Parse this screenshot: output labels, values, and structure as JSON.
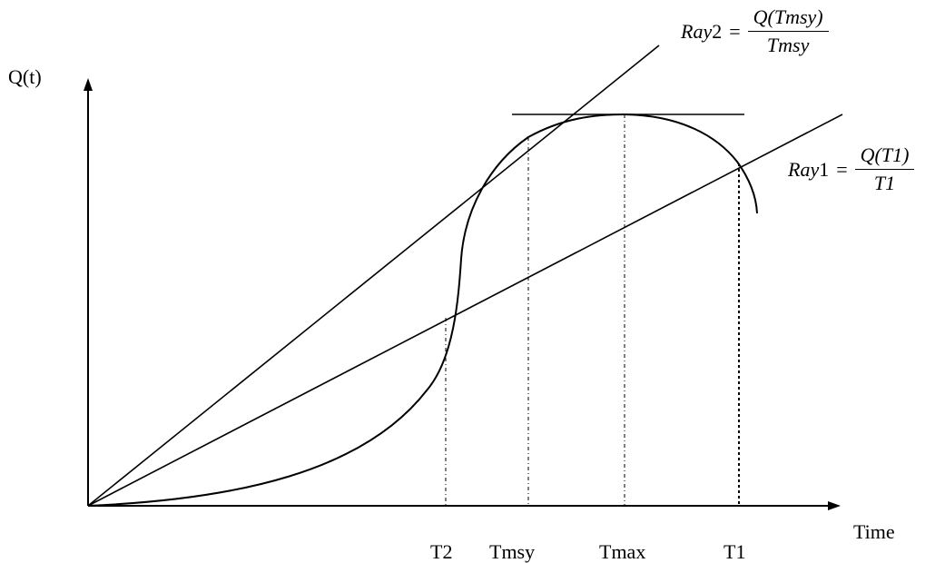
{
  "diagram": {
    "y_axis_label": "Q(t)",
    "x_axis_label": "Time",
    "ticks": {
      "t2": "T2",
      "tmsy": "Tmsy",
      "tmax": "Tmax",
      "t1": "T1"
    },
    "ray2": {
      "lhs_var": "Ray",
      "lhs_num": "2",
      "eq": "=",
      "numerator": "Q(Tmsy)",
      "denominator": "Tmsy"
    },
    "ray1": {
      "lhs_var": "Ray",
      "lhs_num": "1",
      "eq": "=",
      "numerator": "Q(T1)",
      "denominator": "T1"
    }
  }
}
